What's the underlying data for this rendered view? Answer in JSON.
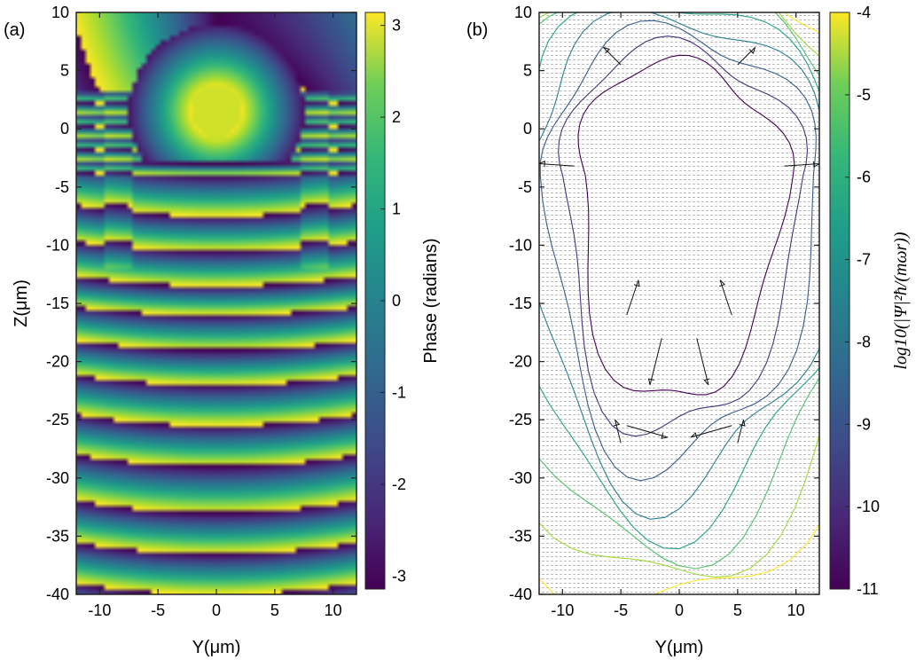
{
  "chart_data": [
    {
      "panel_label": "(a)",
      "type": "heatmap",
      "xlabel": "Y(μm)",
      "ylabel": "Z(μm)",
      "xlim": [
        -12,
        12
      ],
      "ylim": [
        -40,
        10
      ],
      "xticks": [
        -10,
        -5,
        0,
        5,
        10
      ],
      "yticks": [
        10,
        5,
        0,
        -5,
        -10,
        -15,
        -20,
        -25,
        -30,
        -35,
        -40
      ],
      "colorbar": {
        "label": "Phase (radians)",
        "range": [
          -3.1416,
          3.1416
        ],
        "ticks": [
          3,
          2,
          1,
          0,
          -1,
          -2,
          -3
        ],
        "colormap": "viridis"
      },
      "description_features": {
        "central_disk": {
          "center": [
            0,
            1.5
          ],
          "radius": 2.2
        },
        "vortex_ring_center": [
          0,
          1.5
        ],
        "fringe_rows": [
          -4,
          -7.5,
          -10.5,
          -13.5,
          -16,
          -19,
          -22,
          -25.5,
          -29,
          -33,
          -36.5
        ]
      }
    },
    {
      "panel_label": "(b)",
      "type": "contour+quiver",
      "xlabel": "Y(μm)",
      "ylabel": "",
      "xlim": [
        -12,
        12
      ],
      "ylim": [
        -40,
        10
      ],
      "xticks": [
        -10,
        -5,
        0,
        5,
        10
      ],
      "yticks": [
        10,
        5,
        0,
        -5,
        -10,
        -15,
        -20,
        -25,
        -30,
        -35,
        -40
      ],
      "colorbar": {
        "label": "log10(|Ψ|²ħ/(mωr))",
        "range": [
          -11,
          -4
        ],
        "ticks": [
          -4,
          -5,
          -6,
          -7,
          -8,
          -9,
          -10,
          -11
        ],
        "colormap": "viridis"
      },
      "contour_levels": [
        -4,
        -5,
        -6,
        -7,
        -8,
        -9,
        -10,
        -11
      ],
      "large_vectors": [
        {
          "from": [
            -5,
            5.5
          ],
          "to": [
            -6.5,
            7
          ]
        },
        {
          "from": [
            5,
            5.5
          ],
          "to": [
            6.5,
            7
          ]
        },
        {
          "from": [
            -9,
            -3.2
          ],
          "to": [
            -12,
            -3
          ]
        },
        {
          "from": [
            9,
            -3.2
          ],
          "to": [
            12,
            -3
          ]
        },
        {
          "from": [
            -4.5,
            -16
          ],
          "to": [
            -3.5,
            -13
          ]
        },
        {
          "from": [
            4.5,
            -16
          ],
          "to": [
            3.5,
            -13
          ]
        },
        {
          "from": [
            -1.5,
            -18
          ],
          "to": [
            -2.5,
            -22
          ]
        },
        {
          "from": [
            1.5,
            -18
          ],
          "to": [
            2.5,
            -22
          ]
        },
        {
          "from": [
            -4.5,
            -25.5
          ],
          "to": [
            -1,
            -26.5
          ]
        },
        {
          "from": [
            4.5,
            -25.5
          ],
          "to": [
            1,
            -26.5
          ]
        },
        {
          "from": [
            -5,
            -27
          ],
          "to": [
            -5.5,
            -25
          ]
        },
        {
          "from": [
            5,
            -27
          ],
          "to": [
            5.5,
            -25
          ]
        }
      ]
    }
  ]
}
